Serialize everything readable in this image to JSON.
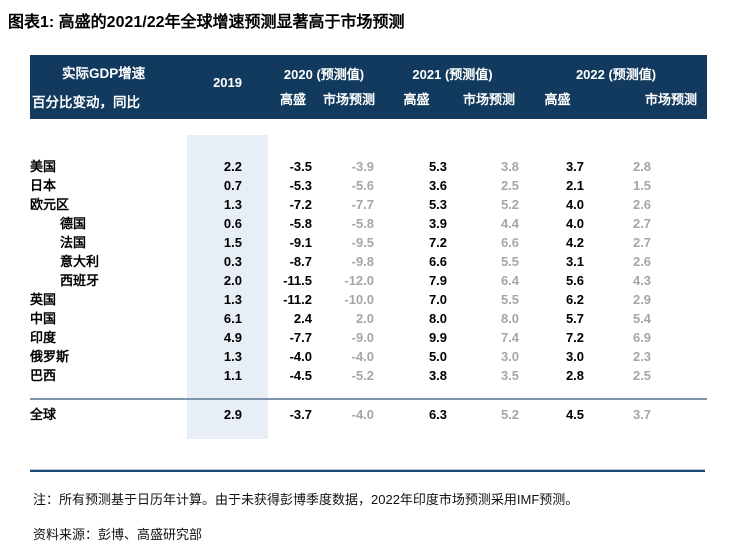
{
  "title": "图表1: 高盛的2021/22年全球增速预测显著高于市场预测",
  "table": {
    "header": {
      "metric_line1": "实际GDP增速",
      "metric_line2": "百分比变动，同比",
      "col_2019": "2019",
      "group_2020": "2020 (预测值)",
      "group_2021": "2021 (预测值)",
      "group_2022": "2022 (预测值)",
      "sub_gs": "高盛",
      "sub_mkt": "市场预测"
    },
    "rows": [
      {
        "label": "美国",
        "indent": false,
        "values": [
          "2.2",
          "-3.5",
          "-3.9",
          "5.3",
          "3.8",
          "3.7",
          "2.8"
        ]
      },
      {
        "label": "日本",
        "indent": false,
        "values": [
          "0.7",
          "-5.3",
          "-5.6",
          "3.6",
          "2.5",
          "2.1",
          "1.5"
        ]
      },
      {
        "label": "欧元区",
        "indent": false,
        "values": [
          "1.3",
          "-7.2",
          "-7.7",
          "5.3",
          "5.2",
          "4.0",
          "2.6"
        ]
      },
      {
        "label": "德国",
        "indent": true,
        "values": [
          "0.6",
          "-5.8",
          "-5.8",
          "3.9",
          "4.4",
          "4.0",
          "2.7"
        ]
      },
      {
        "label": "法国",
        "indent": true,
        "values": [
          "1.5",
          "-9.1",
          "-9.5",
          "7.2",
          "6.6",
          "4.2",
          "2.7"
        ]
      },
      {
        "label": "意大利",
        "indent": true,
        "values": [
          "0.3",
          "-8.7",
          "-9.8",
          "6.6",
          "5.5",
          "3.1",
          "2.6"
        ]
      },
      {
        "label": "西班牙",
        "indent": true,
        "values": [
          "2.0",
          "-11.5",
          "-12.0",
          "7.9",
          "6.4",
          "5.6",
          "4.3"
        ]
      },
      {
        "label": "英国",
        "indent": false,
        "values": [
          "1.3",
          "-11.2",
          "-10.0",
          "7.0",
          "5.5",
          "6.2",
          "2.9"
        ]
      },
      {
        "label": "中国",
        "indent": false,
        "values": [
          "6.1",
          "2.4",
          "2.0",
          "8.0",
          "8.0",
          "5.7",
          "5.4"
        ]
      },
      {
        "label": "印度",
        "indent": false,
        "values": [
          "4.9",
          "-7.7",
          "-9.0",
          "9.9",
          "7.4",
          "7.2",
          "6.9"
        ]
      },
      {
        "label": "俄罗斯",
        "indent": false,
        "values": [
          "1.3",
          "-4.0",
          "-4.0",
          "5.0",
          "3.0",
          "3.0",
          "2.3"
        ]
      },
      {
        "label": "巴西",
        "indent": false,
        "values": [
          "1.1",
          "-4.5",
          "-5.2",
          "3.8",
          "3.5",
          "2.8",
          "2.5"
        ]
      }
    ],
    "total": {
      "label": "全球",
      "values": [
        "2.9",
        "-3.7",
        "-4.0",
        "6.3",
        "5.2",
        "4.5",
        "3.7"
      ]
    }
  },
  "note": "注：所有预测基于日历年计算。由于未获得彭博季度数据，2022年印度市场预测采用IMF预测。",
  "source": "资料来源：彭博、高盛研究部",
  "colors": {
    "header_bg": "#113a5e",
    "highlight_col": "#e8eef6",
    "market_text": "#a6a6a6",
    "mid_rule": "#7d96ae",
    "bottom_rule": "#1c4a74"
  }
}
